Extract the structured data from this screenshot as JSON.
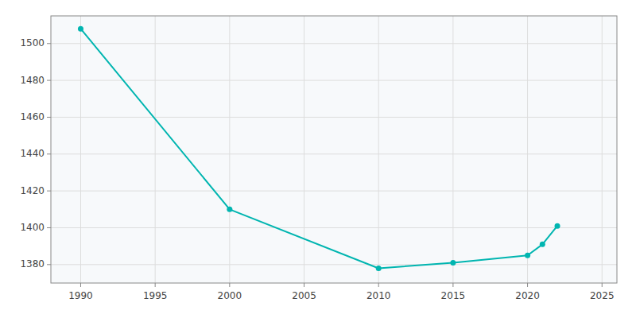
{
  "chart_data": {
    "type": "line",
    "x": [
      1990,
      2000,
      2010,
      2015,
      2020,
      2021,
      2022
    ],
    "values": [
      1508,
      1410,
      1378,
      1381,
      1385,
      1391,
      1401
    ],
    "color": "#00B5B0",
    "marker": "circle",
    "xlim": [
      1988,
      2026
    ],
    "ylim": [
      1370,
      1515
    ],
    "xticks": [
      1990,
      1995,
      2000,
      2005,
      2010,
      2015,
      2020,
      2025
    ],
    "yticks": [
      1380,
      1400,
      1420,
      1440,
      1460,
      1480,
      1500
    ],
    "grid": true
  }
}
